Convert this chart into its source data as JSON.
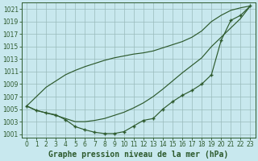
{
  "title": "Graphe pression niveau de la mer (hPa)",
  "background_color": "#c8e8ee",
  "grid_color": "#99bbbb",
  "line_color": "#2d5a2d",
  "x": [
    0,
    1,
    2,
    3,
    4,
    5,
    6,
    7,
    8,
    9,
    10,
    11,
    12,
    13,
    14,
    15,
    16,
    17,
    18,
    19,
    20,
    21,
    22,
    23
  ],
  "line_main": [
    1005.5,
    1004.8,
    1004.4,
    1004.1,
    1003.3,
    1002.2,
    1001.7,
    1001.3,
    1001.1,
    1001.1,
    1001.4,
    1002.3,
    1003.2,
    1003.5,
    1005.0,
    1006.2,
    1007.2,
    1008.0,
    1009.0,
    1010.5,
    1016.0,
    1019.2,
    1020.0,
    1021.5
  ],
  "line_upper": [
    1005.5,
    1007.0,
    1008.5,
    1009.5,
    1010.5,
    1011.2,
    1011.8,
    1012.3,
    1012.8,
    1013.2,
    1013.5,
    1013.8,
    1014.0,
    1014.3,
    1014.8,
    1015.3,
    1015.8,
    1016.5,
    1017.5,
    1019.0,
    1020.0,
    1020.8,
    1021.2,
    1021.5
  ],
  "line_middle": [
    1005.5,
    1004.8,
    1004.4,
    1004.0,
    1003.5,
    1003.0,
    1003.0,
    1003.2,
    1003.5,
    1004.0,
    1004.5,
    1005.2,
    1006.0,
    1007.0,
    1008.2,
    1009.5,
    1010.8,
    1012.0,
    1013.2,
    1015.0,
    1016.5,
    1018.0,
    1019.5,
    1021.5
  ],
  "ylim": [
    1000.5,
    1022.0
  ],
  "yticks": [
    1001,
    1003,
    1005,
    1007,
    1009,
    1011,
    1013,
    1015,
    1017,
    1019,
    1021
  ],
  "xticks": [
    0,
    1,
    2,
    3,
    4,
    5,
    6,
    7,
    8,
    9,
    10,
    11,
    12,
    13,
    14,
    15,
    16,
    17,
    18,
    19,
    20,
    21,
    22,
    23
  ],
  "title_fontsize": 7,
  "tick_fontsize": 5.5
}
